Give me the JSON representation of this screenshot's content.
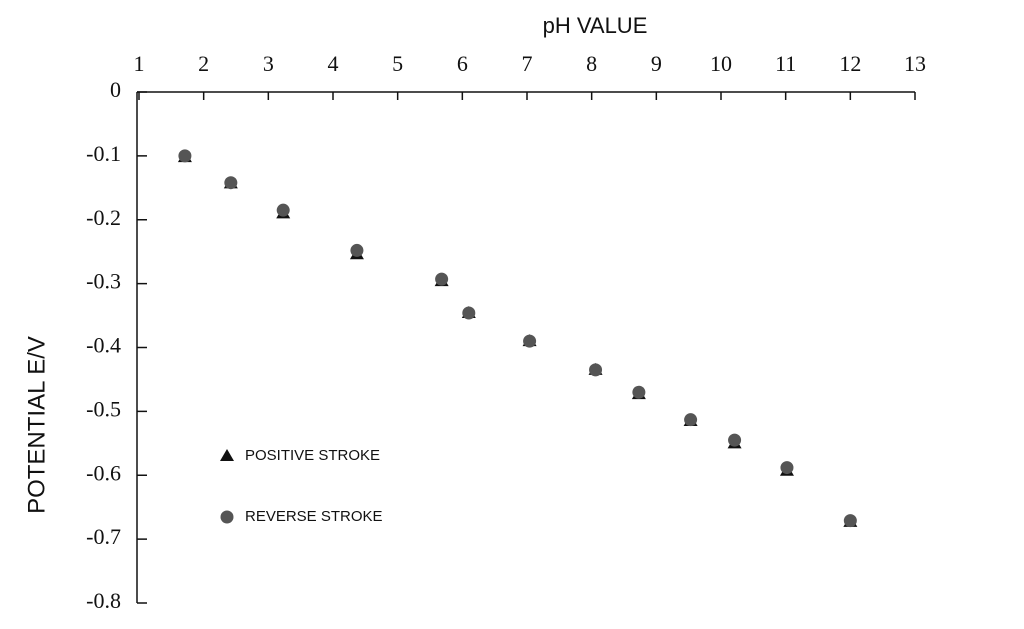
{
  "chart_data": {
    "type": "scatter",
    "x_label": "pH VALUE",
    "y_label": "POTENTIAL E/V",
    "x": [
      1.71,
      2.42,
      3.23,
      4.37,
      5.68,
      6.1,
      7.04,
      8.06,
      8.73,
      9.53,
      10.21,
      11.02,
      12.0
    ],
    "series": [
      {
        "name": "POSITIVE STROKE",
        "color": "#111111",
        "marker": "triangle",
        "values": [
          -0.102,
          -0.143,
          -0.19,
          -0.254,
          -0.296,
          -0.346,
          -0.39,
          -0.435,
          -0.473,
          -0.515,
          -0.55,
          -0.593,
          -0.673
        ]
      },
      {
        "name": "REVERSE STROKE",
        "color": "#555555",
        "marker": "circle",
        "values": [
          -0.1,
          -0.142,
          -0.185,
          -0.248,
          -0.293,
          -0.346,
          -0.39,
          -0.435,
          -0.47,
          -0.513,
          -0.545,
          -0.588,
          -0.671
        ]
      }
    ],
    "xlim": [
      1,
      13
    ],
    "xticks": [
      1,
      2,
      3,
      4,
      5,
      6,
      7,
      8,
      9,
      10,
      11,
      12,
      13
    ],
    "ylim": [
      -0.8,
      0
    ],
    "yticks": [
      0,
      -0.1,
      -0.2,
      -0.3,
      -0.4,
      -0.5,
      -0.6,
      -0.7,
      -0.8
    ],
    "x_axis_position": "top"
  }
}
